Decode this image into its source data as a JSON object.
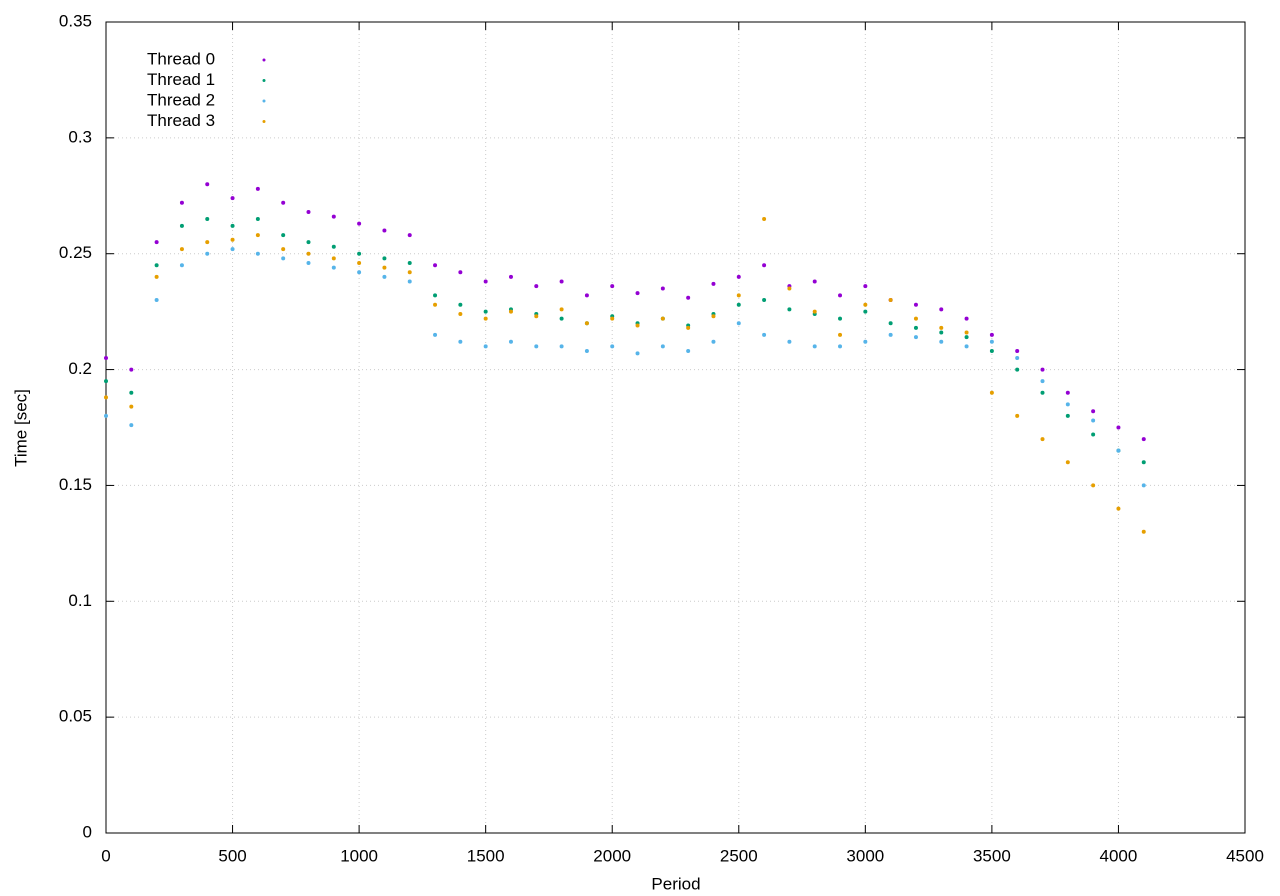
{
  "chart_data": {
    "type": "scatter",
    "x_label": "Period",
    "y_label": "Time [sec]",
    "x": [
      0,
      100,
      200,
      300,
      400,
      500,
      600,
      700,
      800,
      900,
      1000,
      1100,
      1200,
      1300,
      1400,
      1500,
      1600,
      1700,
      1800,
      1900,
      2000,
      2100,
      2200,
      2300,
      2400,
      2500,
      2600,
      2700,
      2800,
      2900,
      3000,
      3100,
      3200,
      3300,
      3400,
      3500,
      3600,
      3700,
      3800,
      3900,
      4000,
      4100
    ],
    "series": [
      {
        "name": "Thread 0",
        "color": "#9400d3",
        "values": [
          0.205,
          0.2,
          0.255,
          0.272,
          0.28,
          0.274,
          0.278,
          0.272,
          0.268,
          0.266,
          0.263,
          0.26,
          0.258,
          0.245,
          0.242,
          0.238,
          0.24,
          0.236,
          0.238,
          0.232,
          0.236,
          0.233,
          0.235,
          0.231,
          0.237,
          0.24,
          0.245,
          0.236,
          0.238,
          0.232,
          0.236,
          0.23,
          0.228,
          0.226,
          0.222,
          0.215,
          0.208,
          0.2,
          0.19,
          0.182,
          0.175,
          0.17
        ]
      },
      {
        "name": "Thread 1",
        "color": "#009e73",
        "values": [
          0.195,
          0.19,
          0.245,
          0.262,
          0.265,
          0.262,
          0.265,
          0.258,
          0.255,
          0.253,
          0.25,
          0.248,
          0.246,
          0.232,
          0.228,
          0.225,
          0.226,
          0.224,
          0.222,
          0.22,
          0.223,
          0.22,
          0.222,
          0.219,
          0.224,
          0.228,
          0.23,
          0.226,
          0.224,
          0.222,
          0.225,
          0.22,
          0.218,
          0.216,
          0.214,
          0.208,
          0.2,
          0.19,
          0.18,
          0.172,
          0.165,
          0.16
        ]
      },
      {
        "name": "Thread 2",
        "color": "#56b4e9",
        "values": [
          0.18,
          0.176,
          0.23,
          0.245,
          0.25,
          0.252,
          0.25,
          0.248,
          0.246,
          0.244,
          0.242,
          0.24,
          0.238,
          0.215,
          0.212,
          0.21,
          0.212,
          0.21,
          0.21,
          0.208,
          0.21,
          0.207,
          0.21,
          0.208,
          0.212,
          0.22,
          0.215,
          0.212,
          0.21,
          0.21,
          0.212,
          0.215,
          0.214,
          0.212,
          0.21,
          0.212,
          0.205,
          0.195,
          0.185,
          0.178,
          0.165,
          0.15
        ]
      },
      {
        "name": "Thread 3",
        "color": "#e69f00",
        "values": [
          0.188,
          0.184,
          0.24,
          0.252,
          0.255,
          0.256,
          0.258,
          0.252,
          0.25,
          0.248,
          0.246,
          0.244,
          0.242,
          0.228,
          0.224,
          0.222,
          0.225,
          0.223,
          0.226,
          0.22,
          0.222,
          0.219,
          0.222,
          0.218,
          0.223,
          0.232,
          0.265,
          0.235,
          0.225,
          0.215,
          0.228,
          0.23,
          0.222,
          0.218,
          0.216,
          0.19,
          0.18,
          0.17,
          0.16,
          0.15,
          0.14,
          0.13
        ]
      }
    ],
    "xlim": [
      0,
      4500
    ],
    "xticks": [
      0,
      500,
      1000,
      1500,
      2000,
      2500,
      3000,
      3500,
      4000,
      4500
    ],
    "ylim": [
      0,
      0.35
    ],
    "yticks": [
      0,
      0.05,
      0.1,
      0.15,
      0.2,
      0.25,
      0.3,
      0.35
    ],
    "grid": true,
    "legend": "top-left"
  }
}
